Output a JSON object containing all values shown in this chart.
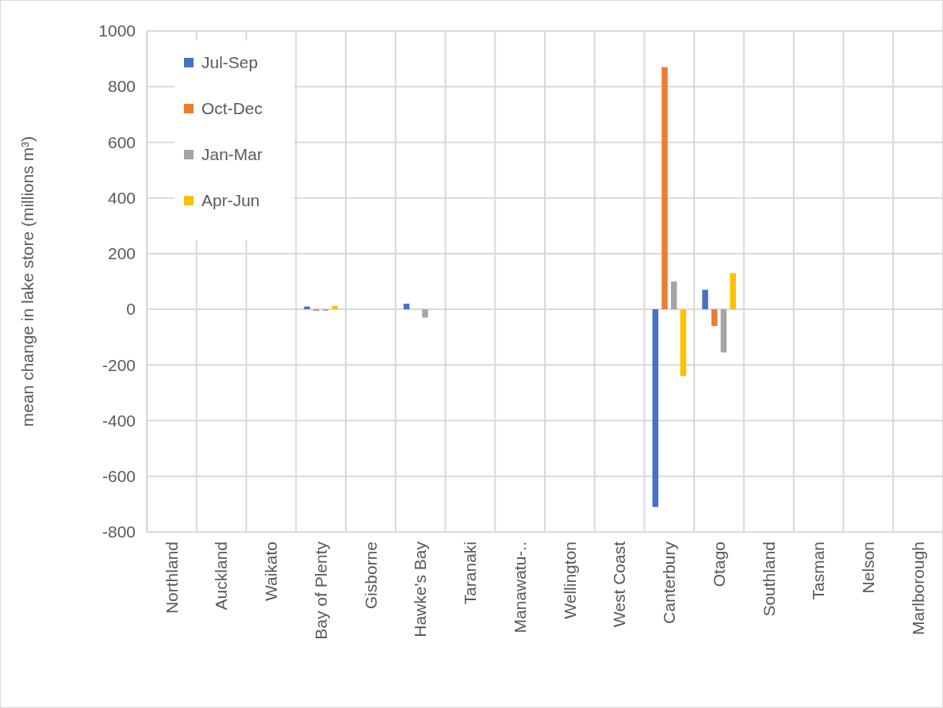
{
  "chart_data": {
    "type": "bar",
    "ylabel": "mean  change in lake store (millions m³)",
    "categories": [
      "Northland",
      "Auckland",
      "Waikato",
      "Bay of Plenty",
      "Gisborne",
      "Hawke's Bay",
      "Taranaki",
      "Manawatu-..",
      "Wellington",
      "West Coast",
      "Canterbury",
      "Otago",
      "Southland",
      "Tasman",
      "Nelson",
      "Marlborough"
    ],
    "series": [
      {
        "name": "Jul-Sep",
        "color": "#4472c4",
        "values": [
          null,
          null,
          null,
          10,
          null,
          20,
          null,
          null,
          null,
          null,
          -710,
          70,
          null,
          null,
          null,
          null
        ]
      },
      {
        "name": "Oct-Dec",
        "color": "#ed7d31",
        "values": [
          null,
          null,
          null,
          -5,
          null,
          null,
          null,
          null,
          null,
          null,
          870,
          -60,
          null,
          null,
          null,
          null
        ]
      },
      {
        "name": "Jan-Mar",
        "color": "#a5a5a5",
        "values": [
          null,
          null,
          null,
          -5,
          null,
          -30,
          null,
          null,
          null,
          null,
          100,
          -155,
          null,
          null,
          null,
          null
        ]
      },
      {
        "name": "Apr-Jun",
        "color": "#ffc000",
        "values": [
          null,
          null,
          null,
          12,
          null,
          null,
          null,
          null,
          null,
          null,
          -240,
          130,
          null,
          null,
          null,
          null
        ]
      }
    ],
    "ylim": [
      -800,
      1000
    ],
    "yticks": [
      -800,
      -600,
      -400,
      -200,
      0,
      200,
      400,
      600,
      800,
      1000
    ],
    "grid": true,
    "legend": "top left"
  }
}
